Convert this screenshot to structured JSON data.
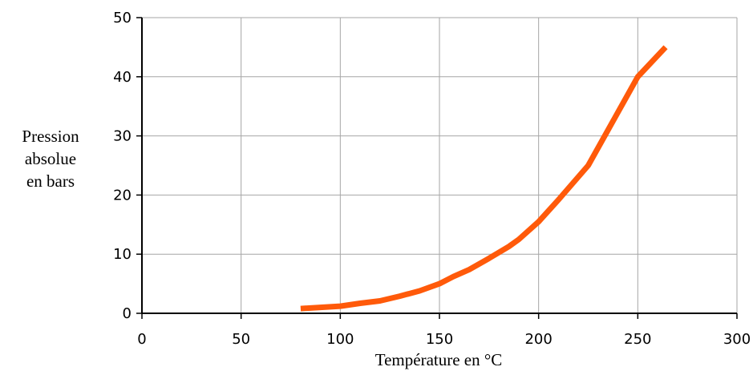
{
  "chart_data": {
    "type": "line",
    "title": "",
    "xlabel": "Température en °C",
    "ylabel": [
      "Pression",
      "absolue",
      "en bars"
    ],
    "xlim": [
      0,
      300
    ],
    "ylim": [
      0,
      50
    ],
    "x_ticks": [
      "0",
      "50",
      "100",
      "150",
      "200",
      "250",
      "300"
    ],
    "y_ticks": [
      "0",
      "10",
      "20",
      "30",
      "40",
      "50"
    ],
    "grid": true,
    "legend": "none",
    "series": [
      {
        "color": "#ff5a0a",
        "points": [
          [
            80,
            0.8
          ],
          [
            90,
            1.0
          ],
          [
            100,
            1.2
          ],
          [
            110,
            1.7
          ],
          [
            120,
            2.1
          ],
          [
            130,
            2.9
          ],
          [
            140,
            3.8
          ],
          [
            150,
            5.0
          ],
          [
            157,
            6.2
          ],
          [
            165,
            7.4
          ],
          [
            175,
            9.3
          ],
          [
            185,
            11.3
          ],
          [
            190,
            12.5
          ],
          [
            200,
            15.5
          ],
          [
            210,
            19.2
          ],
          [
            225,
            25.0
          ],
          [
            240,
            34.0
          ],
          [
            250,
            40.0
          ],
          [
            264,
            45.0
          ]
        ]
      }
    ]
  }
}
